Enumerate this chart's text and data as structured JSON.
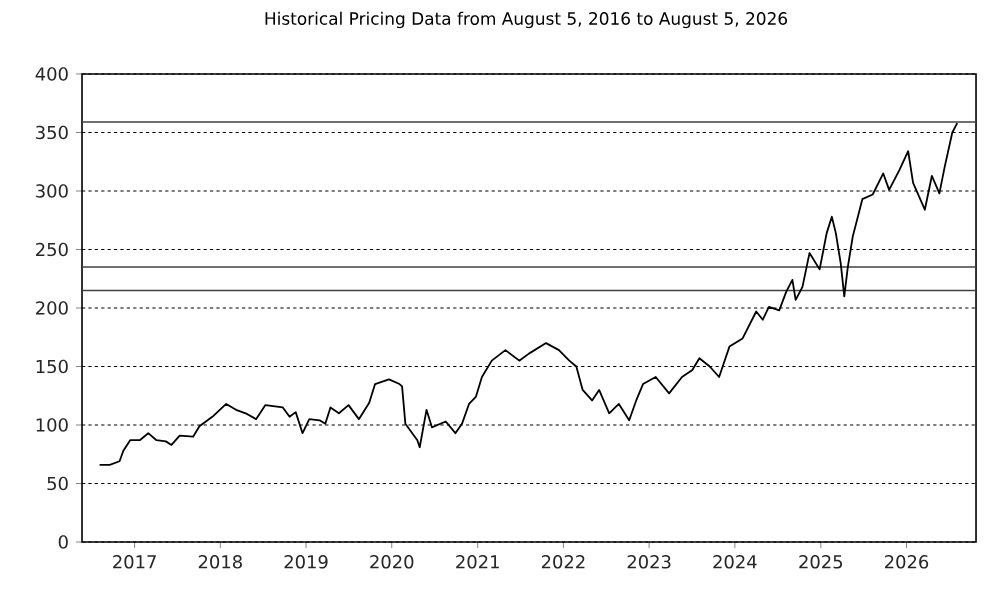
{
  "chart_data": {
    "type": "line",
    "title": "Historical Pricing Data from August 5, 2016 to August 5, 2026",
    "xlim": [
      "2016-05-22",
      "2026-10-24"
    ],
    "xticks": [
      {
        "value": "2017-01-01",
        "label": "2017"
      },
      {
        "value": "2018-01-01",
        "label": "2018"
      },
      {
        "value": "2019-01-01",
        "label": "2019"
      },
      {
        "value": "2020-01-01",
        "label": "2020"
      },
      {
        "value": "2021-01-01",
        "label": "2021"
      },
      {
        "value": "2022-01-01",
        "label": "2022"
      },
      {
        "value": "2023-01-01",
        "label": "2023"
      },
      {
        "value": "2024-01-01",
        "label": "2024"
      },
      {
        "value": "2025-01-01",
        "label": "2025"
      },
      {
        "value": "2026-01-01",
        "label": "2026"
      }
    ],
    "ylim": [
      0,
      400
    ],
    "yticks": [
      0,
      50,
      100,
      150,
      200,
      250,
      300,
      350,
      400
    ],
    "grid": "y",
    "ref_lines": [
      {
        "axis": "y",
        "value": 359,
        "color": "#404040"
      },
      {
        "axis": "y",
        "value": 235,
        "color": "#404040"
      },
      {
        "axis": "y",
        "value": 215,
        "color": "#404040"
      }
    ],
    "x": [
      "2016-08-05",
      "2016-09-17",
      "2016-10-29",
      "2016-11-14",
      "2016-12-13",
      "2017-01-23",
      "2017-02-28",
      "2017-04-04",
      "2017-05-14",
      "2017-06-07",
      "2017-07-12",
      "2017-09-07",
      "2017-10-04",
      "2017-11-28",
      "2018-01-26",
      "2018-03-09",
      "2018-04-19",
      "2018-06-02",
      "2018-07-12",
      "2018-09-24",
      "2018-10-23",
      "2018-11-18",
      "2018-12-17",
      "2019-01-15",
      "2019-02-28",
      "2019-03-24",
      "2019-04-15",
      "2019-05-21",
      "2019-07-01",
      "2019-08-14",
      "2019-09-27",
      "2019-10-22",
      "2019-12-20",
      "2020-02-03",
      "2020-02-14",
      "2020-02-28",
      "2020-04-19",
      "2020-04-29",
      "2020-05-10",
      "2020-05-28",
      "2020-06-20",
      "2020-08-18",
      "2020-09-28",
      "2020-10-26",
      "2020-11-25",
      "2020-12-24",
      "2021-01-19",
      "2021-03-02",
      "2021-04-29",
      "2021-06-27",
      "2021-08-07",
      "2021-10-19",
      "2021-12-13",
      "2022-01-26",
      "2022-02-25",
      "2022-03-24",
      "2022-05-03",
      "2022-06-02",
      "2022-07-15",
      "2022-08-25",
      "2022-10-08",
      "2022-11-07",
      "2022-12-06",
      "2023-01-29",
      "2023-03-27",
      "2023-05-21",
      "2023-07-04",
      "2023-08-03",
      "2023-09-16",
      "2023-10-26",
      "2023-12-09",
      "2024-02-03",
      "2024-04-01",
      "2024-04-29",
      "2024-05-25",
      "2024-07-08",
      "2024-08-07",
      "2024-09-02",
      "2024-09-16",
      "2024-10-15",
      "2024-11-14",
      "2024-12-27",
      "2025-01-26",
      "2025-02-17",
      "2025-03-06",
      "2025-03-27",
      "2025-04-11",
      "2025-04-26",
      "2025-05-17",
      "2025-06-27",
      "2025-08-10",
      "2025-09-24",
      "2025-10-19",
      "2025-12-02",
      "2026-01-08",
      "2026-01-29",
      "2026-03-20",
      "2026-04-19",
      "2026-05-21",
      "2026-06-13",
      "2026-07-15",
      "2026-08-05"
    ],
    "series": [
      {
        "color": "#000000",
        "values": [
          66,
          66,
          69,
          78,
          87,
          87,
          93,
          87,
          86,
          83,
          91,
          90,
          99,
          107,
          118,
          113,
          110,
          105,
          117,
          115,
          107,
          111,
          93,
          105,
          104,
          101,
          115,
          110,
          117,
          105,
          119,
          135,
          139,
          135,
          133,
          101,
          87,
          81,
          93,
          113,
          98,
          103,
          93,
          101,
          118,
          124,
          141,
          155,
          164,
          155,
          161,
          170,
          164,
          155,
          150,
          130,
          121,
          130,
          110,
          118,
          104,
          121,
          135,
          141,
          127,
          141,
          147,
          157,
          150,
          141,
          167,
          174,
          197,
          190,
          201,
          198,
          214,
          224,
          207,
          218,
          247,
          233,
          264,
          278,
          264,
          238,
          210,
          235,
          261,
          293,
          297,
          315,
          301,
          318,
          334,
          307,
          284,
          313,
          298,
          321,
          350,
          358
        ]
      }
    ]
  }
}
